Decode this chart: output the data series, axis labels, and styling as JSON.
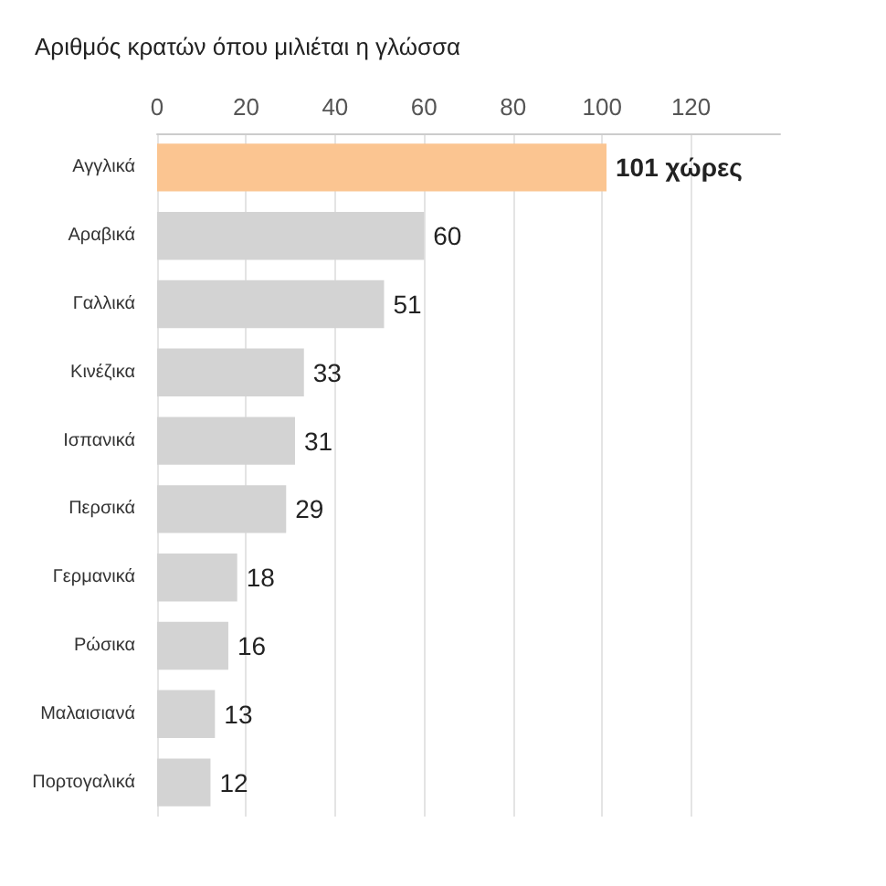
{
  "chart_data": {
    "type": "bar",
    "orientation": "horizontal",
    "title": "Αριθμός κρατών όπου μιλιέται η γλώσσα",
    "categories": [
      "Αγγλικά",
      "Αραβικά",
      "Γαλλικά",
      "Κινέζικα",
      "Ισπανικά",
      "Περσικά",
      "Γερμανικά",
      "Ρώσικα",
      "Μαλαισιανά",
      "Πορτογαλικά"
    ],
    "values": [
      101,
      60,
      51,
      33,
      31,
      29,
      18,
      16,
      13,
      12
    ],
    "value_labels": [
      "101 χώρες",
      "60",
      "51",
      "33",
      "31",
      "29",
      "18",
      "16",
      "13",
      "12"
    ],
    "colors": [
      "#fbc591",
      "#d3d3d3",
      "#d3d3d3",
      "#d3d3d3",
      "#d3d3d3",
      "#d3d3d3",
      "#d3d3d3",
      "#d3d3d3",
      "#d3d3d3",
      "#d3d3d3"
    ],
    "xlim": [
      0,
      140
    ],
    "xticks": [
      0,
      20,
      40,
      60,
      80,
      100,
      120
    ],
    "grid": "x"
  }
}
